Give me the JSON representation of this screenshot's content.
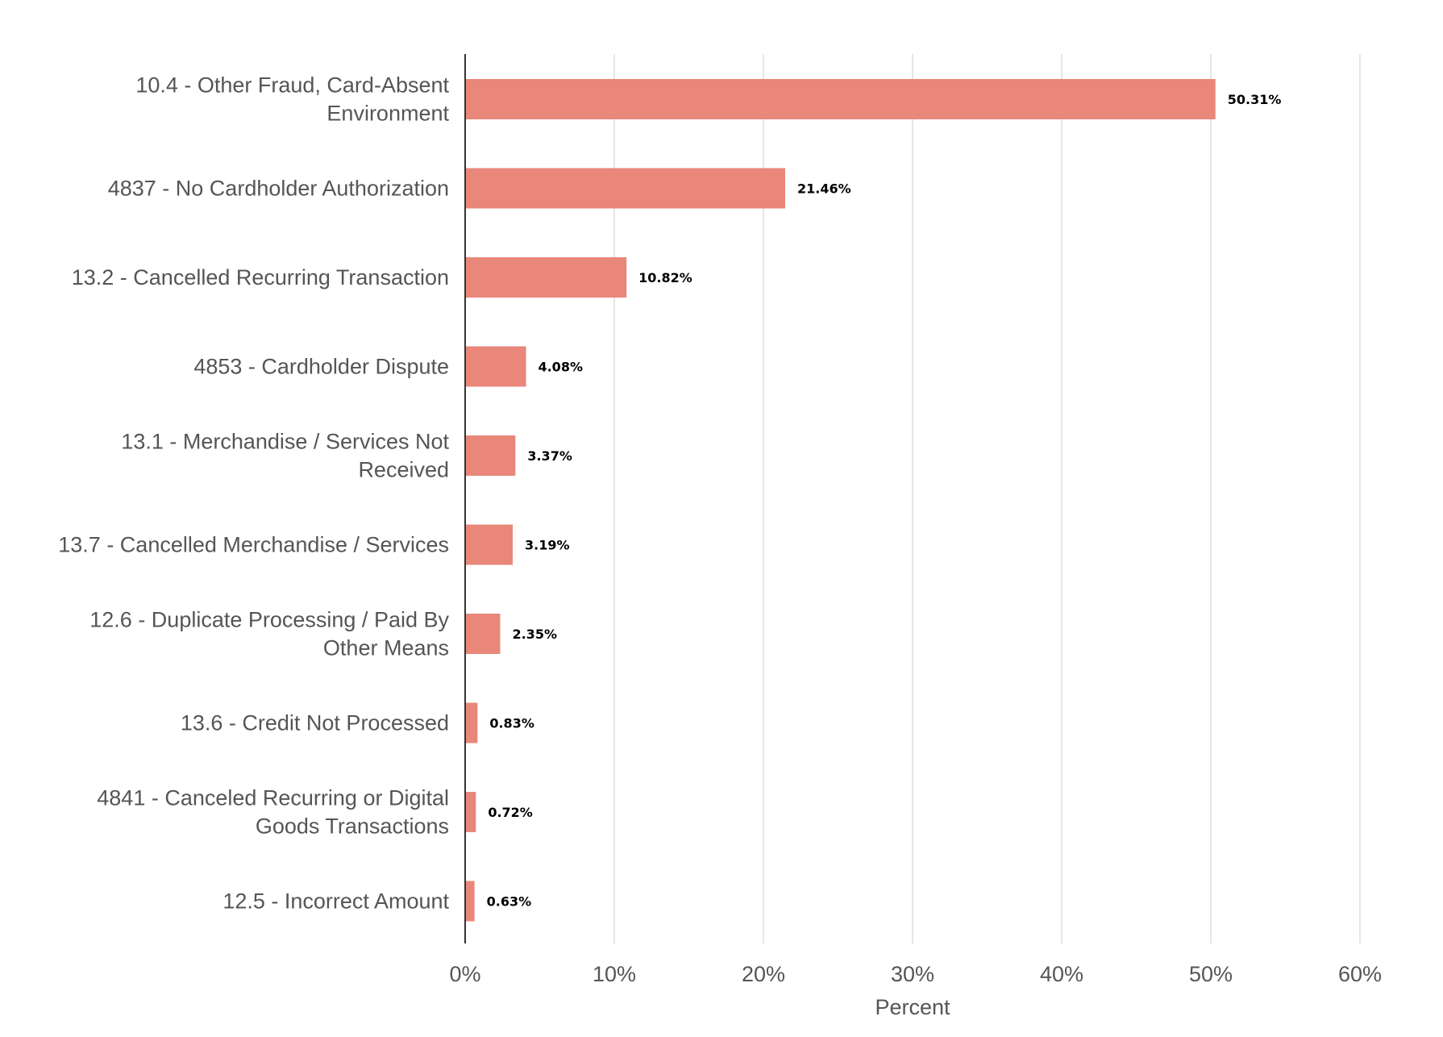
{
  "chart_data": {
    "type": "bar",
    "orientation": "horizontal",
    "categories": [
      "10.4 - Other Fraud, Card-Absent Environment",
      "4837 - No Cardholder Authorization",
      "13.2 - Cancelled Recurring Transaction",
      "4853 - Cardholder Dispute",
      "13.1 - Merchandise / Services Not Received",
      "13.7 - Cancelled Merchandise / Services",
      "12.6 - Duplicate Processing / Paid By Other Means",
      "13.6 - Credit Not Processed",
      "4841 - Canceled Recurring or Digital Goods Transactions",
      "12.5 - Incorrect Amount"
    ],
    "category_lines": [
      [
        "10.4 - Other Fraud, Card-Absent",
        "Environment"
      ],
      [
        "4837 - No Cardholder Authorization"
      ],
      [
        "13.2 - Cancelled Recurring Transaction"
      ],
      [
        "4853 - Cardholder Dispute"
      ],
      [
        "13.1 - Merchandise / Services Not",
        "Received"
      ],
      [
        "13.7 - Cancelled Merchandise / Services"
      ],
      [
        "12.6 - Duplicate Processing / Paid By",
        "Other Means"
      ],
      [
        "13.6 - Credit Not Processed"
      ],
      [
        "4841 - Canceled Recurring or Digital",
        "Goods Transactions"
      ],
      [
        "12.5 - Incorrect Amount"
      ]
    ],
    "values": [
      50.31,
      21.46,
      10.82,
      4.08,
      3.37,
      3.19,
      2.35,
      0.83,
      0.72,
      0.63
    ],
    "data_labels": [
      "50.31%",
      "21.46%",
      "10.82%",
      "4.08%",
      "3.37%",
      "3.19%",
      "2.35%",
      "0.83%",
      "0.72%",
      "0.63%"
    ],
    "title": "",
    "xlabel": "Percent",
    "ylabel": "",
    "xlim": [
      0,
      60
    ],
    "xticks": [
      0,
      10,
      20,
      30,
      40,
      50,
      60
    ],
    "xtick_labels": [
      "0%",
      "10%",
      "20%",
      "30%",
      "40%",
      "50%",
      "60%"
    ],
    "grid": "vertical",
    "legend": "none",
    "colors": {
      "bar": "#e8877a",
      "grid": "#e6e6e6",
      "axis": "#333333",
      "text": "#555555",
      "data_label": "#000000"
    }
  }
}
